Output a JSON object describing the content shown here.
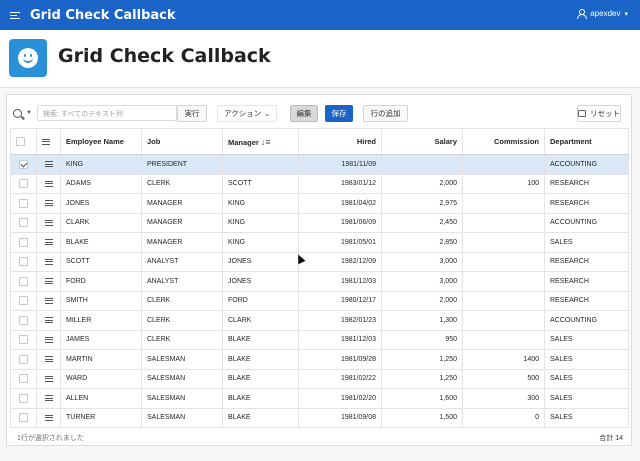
{
  "app": {
    "title": "Grid Check Callback",
    "user": "apexdev"
  },
  "page": {
    "title": "Grid Check Callback"
  },
  "toolbar": {
    "search_placeholder": "検索: すべてのテキスト列",
    "go_label": "実行",
    "actions_label": "アクション",
    "edit_label": "編集",
    "save_label": "保存",
    "add_row_label": "行の追加",
    "reset_label": "リセット"
  },
  "grid": {
    "columns": [
      "Employee Name",
      "Job",
      "Manager",
      "Hired",
      "Salary",
      "Commission",
      "Department"
    ],
    "rows": [
      {
        "selected": true,
        "ename": "KING",
        "job": "PRESIDENT",
        "mgr": "",
        "hired": "1981/11/09",
        "sal": "",
        "comm": "",
        "dept": "ACCOUNTING"
      },
      {
        "selected": false,
        "ename": "ADAMS",
        "job": "CLERK",
        "mgr": "SCOTT",
        "hired": "1983/01/12",
        "sal": "2,000",
        "comm": "100",
        "dept": "RESEARCH"
      },
      {
        "selected": false,
        "ename": "JONES",
        "job": "MANAGER",
        "mgr": "KING",
        "hired": "1981/04/02",
        "sal": "2,975",
        "comm": "",
        "dept": "RESEARCH"
      },
      {
        "selected": false,
        "ename": "CLARK",
        "job": "MANAGER",
        "mgr": "KING",
        "hired": "1981/06/09",
        "sal": "2,450",
        "comm": "",
        "dept": "ACCOUNTING"
      },
      {
        "selected": false,
        "ename": "BLAKE",
        "job": "MANAGER",
        "mgr": "KING",
        "hired": "1981/05/01",
        "sal": "2,850",
        "comm": "",
        "dept": "SALES"
      },
      {
        "selected": false,
        "ename": "SCOTT",
        "job": "ANALYST",
        "mgr": "JONES",
        "hired": "1982/12/09",
        "sal": "3,000",
        "comm": "",
        "dept": "RESEARCH"
      },
      {
        "selected": false,
        "ename": "FORD",
        "job": "ANALYST",
        "mgr": "JONES",
        "hired": "1981/12/03",
        "sal": "3,000",
        "comm": "",
        "dept": "RESEARCH"
      },
      {
        "selected": false,
        "ename": "SMITH",
        "job": "CLERK",
        "mgr": "FORD",
        "hired": "1980/12/17",
        "sal": "2,000",
        "comm": "",
        "dept": "RESEARCH"
      },
      {
        "selected": false,
        "ename": "MILLER",
        "job": "CLERK",
        "mgr": "CLARK",
        "hired": "1982/01/23",
        "sal": "1,300",
        "comm": "",
        "dept": "ACCOUNTING"
      },
      {
        "selected": false,
        "ename": "JAMES",
        "job": "CLERK",
        "mgr": "BLAKE",
        "hired": "1981/12/03",
        "sal": "950",
        "comm": "",
        "dept": "SALES"
      },
      {
        "selected": false,
        "ename": "MARTIN",
        "job": "SALESMAN",
        "mgr": "BLAKE",
        "hired": "1981/09/28",
        "sal": "1,250",
        "comm": "1400",
        "dept": "SALES"
      },
      {
        "selected": false,
        "ename": "WARD",
        "job": "SALESMAN",
        "mgr": "BLAKE",
        "hired": "1981/02/22",
        "sal": "1,250",
        "comm": "500",
        "dept": "SALES"
      },
      {
        "selected": false,
        "ename": "ALLEN",
        "job": "SALESMAN",
        "mgr": "BLAKE",
        "hired": "1981/02/20",
        "sal": "1,600",
        "comm": "300",
        "dept": "SALES"
      },
      {
        "selected": false,
        "ename": "TURNER",
        "job": "SALESMAN",
        "mgr": "BLAKE",
        "hired": "1981/09/08",
        "sal": "1,500",
        "comm": "0",
        "dept": "SALES"
      }
    ]
  },
  "footer": {
    "selection_text": "1行が選択されました",
    "total_text": "合計 14"
  },
  "colors": {
    "header_bg": "#1a63c7",
    "selected_row": "#dbe8f8",
    "save_button": "#1a63c7"
  }
}
